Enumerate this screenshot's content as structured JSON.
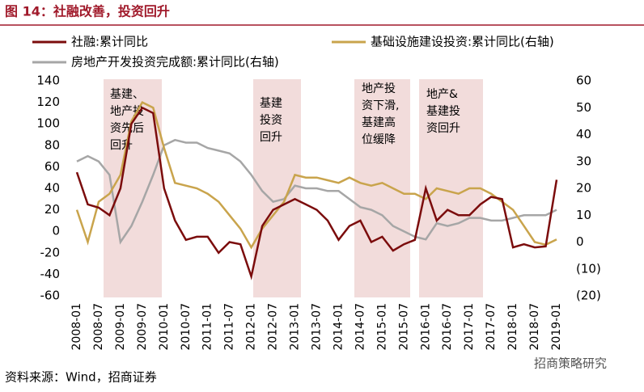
{
  "header": {
    "title": "图 14：社融改善，投资回升"
  },
  "chart_data": {
    "type": "line",
    "categories": [
      "2008-01",
      null,
      "2008-07",
      null,
      "2009-01",
      null,
      "2009-07",
      null,
      "2010-01",
      null,
      "2010-07",
      null,
      "2011-01",
      null,
      "2011-07",
      null,
      "2012-01",
      null,
      "2012-07",
      null,
      "2013-01",
      null,
      "2013-07",
      null,
      "2014-01",
      null,
      "2014-07",
      null,
      "2015-01",
      null,
      "2015-07",
      null,
      "2016-01",
      null,
      "2016-07",
      null,
      "2017-01",
      null,
      "2017-07",
      null,
      "2018-01",
      null,
      "2018-07",
      null,
      "2019-01"
    ],
    "series": [
      {
        "name": "社融:累计同比",
        "color": "#7b0c0c",
        "values": [
          55,
          25,
          22,
          15,
          40,
          100,
          115,
          110,
          40,
          10,
          -8,
          -5,
          -5,
          -20,
          -10,
          -12,
          -42,
          5,
          20,
          25,
          30,
          25,
          20,
          10,
          -8,
          5,
          10,
          -10,
          -5,
          -18,
          -12,
          -8,
          40,
          10,
          20,
          15,
          15,
          25,
          32,
          30,
          -15,
          -12,
          -15,
          -14,
          48
        ]
      },
      {
        "name": "基础设施建设投资:累计同比(右轴)",
        "color": "#c9a44c",
        "axis": "y2",
        "values": [
          12,
          0,
          15,
          18,
          25,
          45,
          52,
          50,
          35,
          22,
          21,
          20,
          18,
          15,
          10,
          5,
          -2,
          5,
          10,
          15,
          25,
          24,
          24,
          23,
          22,
          24,
          22,
          21,
          22,
          20,
          18,
          18,
          16,
          20,
          19,
          18,
          20,
          20,
          18,
          15,
          12,
          6,
          0,
          -1,
          1
        ]
      },
      {
        "name": "房地产开发投资完成额:累计同比(右轴)",
        "color": "#a6a6a6",
        "axis": "y2",
        "values": [
          30,
          32,
          30,
          25,
          0,
          6,
          15,
          25,
          36,
          38,
          37,
          37,
          35,
          34,
          33,
          30,
          25,
          19,
          15,
          16,
          21,
          20,
          20,
          19,
          19,
          16,
          13,
          12,
          10,
          6,
          4,
          2,
          1,
          7,
          6,
          7,
          9,
          9,
          8,
          8,
          9,
          10,
          10,
          10,
          12
        ]
      }
    ],
    "ylim": [
      -60,
      140
    ],
    "yticks": [
      140,
      120,
      100,
      80,
      60,
      40,
      20,
      0,
      -20,
      -40,
      -60
    ],
    "y2lim": [
      -20,
      60
    ],
    "y2ticks": [
      60,
      50,
      40,
      30,
      20,
      10,
      0,
      {
        "value": -10,
        "label": "(10)"
      },
      {
        "value": -20,
        "label": "(20)"
      }
    ],
    "annotations": [
      [
        "基建、",
        "地产投",
        "资先后",
        "回升"
      ],
      [
        "基建",
        "投资",
        "回升"
      ],
      [
        "地产投",
        "资下滑,",
        "基建高",
        "位缓降"
      ],
      [
        "地产&",
        "基建投",
        "资回升"
      ]
    ]
  },
  "footer": {
    "source": "资料来源：Wind，招商证券",
    "watermark": "招商策略研究"
  }
}
